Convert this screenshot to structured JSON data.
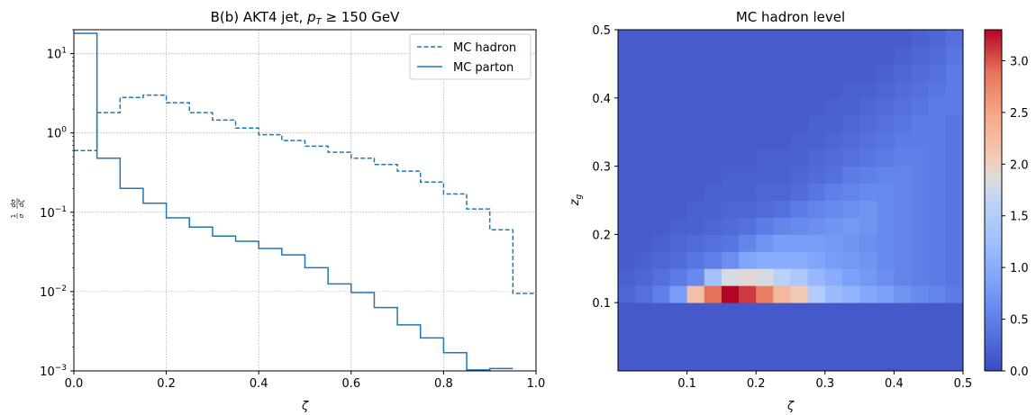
{
  "chart_data": [
    {
      "type": "line",
      "title": "B(b) AKT4 jet, p_T ≥ 150 GeV",
      "title_parts": {
        "lead": "B(b) AKT4 jet, ",
        "p": "p",
        "sub": "T",
        "rest": " ≥ 150 GeV"
      },
      "xlabel": "ζ",
      "ylabel": "1/σ dσ/dζ",
      "ylabel_parts": {
        "num1": "1",
        "den1": "σ",
        "num2": "dσ",
        "den2": "dζ"
      },
      "xlim": [
        0.0,
        1.0
      ],
      "ylim": [
        0.001,
        20
      ],
      "y_scale": "log",
      "grid": true,
      "legend_position": "top-right",
      "x_ticks": [
        "0.0",
        "0.2",
        "0.4",
        "0.6",
        "0.8",
        "1.0"
      ],
      "x_tick_values": [
        0,
        0.2,
        0.4,
        0.6,
        0.8,
        1.0
      ],
      "y_tick_exponents": [
        -3,
        -2,
        -1,
        0,
        1
      ],
      "bin_edges": [
        0,
        0.05,
        0.1,
        0.15,
        0.2,
        0.25,
        0.3,
        0.35,
        0.4,
        0.45,
        0.5,
        0.55,
        0.6,
        0.65,
        0.7,
        0.75,
        0.8,
        0.85,
        0.9,
        0.95,
        1.0
      ],
      "series": [
        {
          "name": "MC hadron",
          "style": "dashed",
          "color": "#1f77b4",
          "values": [
            0.6,
            1.8,
            2.8,
            3.0,
            2.4,
            1.8,
            1.45,
            1.15,
            0.95,
            0.8,
            0.68,
            0.57,
            0.48,
            0.4,
            0.33,
            0.24,
            0.17,
            0.11,
            0.06,
            0.0095
          ]
        },
        {
          "name": "MC parton",
          "style": "solid",
          "color": "#1f77b4",
          "values": [
            18,
            0.48,
            0.2,
            0.13,
            0.085,
            0.065,
            0.05,
            0.043,
            0.035,
            0.029,
            0.02,
            0.0125,
            0.0097,
            0.0063,
            0.0038,
            0.0026,
            0.0017,
            0.00103,
            0.00107,
            null
          ]
        }
      ]
    },
    {
      "type": "heatmap",
      "title": "MC hadron level",
      "xlabel": "ζ",
      "ylabel": "z_g",
      "ylabel_parts": {
        "main": "z",
        "sub": "g"
      },
      "xlim": [
        0,
        0.5
      ],
      "ylim": [
        0,
        0.5
      ],
      "x_ticks": [
        "0.1",
        "0.2",
        "0.3",
        "0.4",
        "0.5"
      ],
      "x_tick_values": [
        0.1,
        0.2,
        0.3,
        0.4,
        0.5
      ],
      "y_ticks": [
        "0.1",
        "0.2",
        "0.3",
        "0.4",
        "0.5"
      ],
      "y_tick_values": [
        0.1,
        0.2,
        0.3,
        0.4,
        0.5
      ],
      "colormap": "coolwarm",
      "colorbar_range": [
        0,
        3.3
      ],
      "colorbar_ticks": [
        "0.0",
        "0.5",
        "1.0",
        "1.5",
        "2.0",
        "2.5",
        "3.0"
      ],
      "colorbar_tick_values": [
        0,
        0.5,
        1.0,
        1.5,
        2.0,
        2.5,
        3.0
      ],
      "x_bin_edges": [
        0,
        0.025,
        0.05,
        0.075,
        0.1,
        0.125,
        0.15,
        0.175,
        0.2,
        0.225,
        0.25,
        0.275,
        0.3,
        0.325,
        0.35,
        0.375,
        0.4,
        0.425,
        0.45,
        0.475,
        0.5
      ],
      "y_bin_edges": [
        0,
        0.1,
        0.125,
        0.15,
        0.175,
        0.2,
        0.225,
        0.25,
        0.275,
        0.3,
        0.325,
        0.35,
        0.375,
        0.4,
        0.425,
        0.45,
        0.475,
        0.5
      ],
      "cell_values": [
        [
          0.12,
          0.12,
          0.12,
          0.12,
          0.12,
          0.12,
          0.12,
          0.12,
          0.12,
          0.12,
          0.12,
          0.12,
          0.12,
          0.12,
          0.12,
          0.12,
          0.12,
          0.12,
          0.12,
          0.12
        ],
        [
          0.25,
          0.35,
          0.5,
          0.8,
          2.2,
          2.9,
          3.3,
          3.1,
          2.8,
          2.3,
          2.1,
          1.5,
          1.2,
          1.1,
          0.95,
          0.85,
          0.7,
          0.6,
          0.55,
          0.45
        ],
        [
          0.2,
          0.25,
          0.35,
          0.45,
          0.6,
          1.3,
          1.8,
          1.9,
          1.8,
          1.6,
          1.4,
          1.15,
          1.0,
          0.85,
          0.75,
          0.65,
          0.55,
          0.5,
          0.45,
          0.4
        ],
        [
          0.15,
          0.2,
          0.25,
          0.3,
          0.4,
          0.5,
          0.65,
          0.9,
          1.0,
          1.0,
          1.0,
          0.9,
          0.8,
          0.75,
          0.7,
          0.6,
          0.55,
          0.5,
          0.45,
          0.4
        ],
        [
          0.15,
          0.15,
          0.2,
          0.25,
          0.3,
          0.35,
          0.4,
          0.55,
          0.7,
          0.8,
          0.8,
          0.8,
          0.75,
          0.7,
          0.65,
          0.6,
          0.55,
          0.5,
          0.45,
          0.4
        ],
        [
          0.15,
          0.15,
          0.15,
          0.2,
          0.2,
          0.25,
          0.3,
          0.35,
          0.45,
          0.55,
          0.6,
          0.65,
          0.7,
          0.75,
          0.7,
          0.6,
          0.55,
          0.5,
          0.45,
          0.4
        ],
        [
          0.15,
          0.15,
          0.15,
          0.15,
          0.2,
          0.2,
          0.25,
          0.25,
          0.3,
          0.35,
          0.45,
          0.55,
          0.6,
          0.65,
          0.7,
          0.6,
          0.55,
          0.5,
          0.45,
          0.4
        ],
        [
          0.15,
          0.15,
          0.15,
          0.15,
          0.15,
          0.2,
          0.2,
          0.2,
          0.25,
          0.25,
          0.3,
          0.4,
          0.5,
          0.55,
          0.6,
          0.6,
          0.55,
          0.5,
          0.45,
          0.4
        ],
        [
          0.15,
          0.15,
          0.15,
          0.15,
          0.15,
          0.15,
          0.2,
          0.2,
          0.2,
          0.2,
          0.25,
          0.3,
          0.35,
          0.45,
          0.5,
          0.55,
          0.55,
          0.5,
          0.45,
          0.4
        ],
        [
          0.15,
          0.15,
          0.15,
          0.15,
          0.15,
          0.15,
          0.15,
          0.15,
          0.2,
          0.2,
          0.2,
          0.25,
          0.3,
          0.35,
          0.4,
          0.45,
          0.5,
          0.5,
          0.45,
          0.4
        ],
        [
          0.15,
          0.15,
          0.15,
          0.15,
          0.15,
          0.15,
          0.15,
          0.15,
          0.15,
          0.15,
          0.2,
          0.2,
          0.25,
          0.3,
          0.35,
          0.4,
          0.45,
          0.45,
          0.45,
          0.4
        ],
        [
          0.15,
          0.15,
          0.15,
          0.15,
          0.15,
          0.15,
          0.15,
          0.15,
          0.15,
          0.15,
          0.15,
          0.2,
          0.2,
          0.25,
          0.3,
          0.35,
          0.4,
          0.45,
          0.45,
          0.4
        ],
        [
          0.15,
          0.15,
          0.15,
          0.15,
          0.15,
          0.15,
          0.15,
          0.15,
          0.15,
          0.15,
          0.15,
          0.15,
          0.2,
          0.2,
          0.25,
          0.3,
          0.35,
          0.4,
          0.45,
          0.45
        ],
        [
          0.15,
          0.15,
          0.15,
          0.15,
          0.15,
          0.15,
          0.15,
          0.15,
          0.15,
          0.15,
          0.15,
          0.15,
          0.15,
          0.2,
          0.2,
          0.25,
          0.3,
          0.35,
          0.4,
          0.45
        ],
        [
          0.15,
          0.15,
          0.15,
          0.15,
          0.15,
          0.15,
          0.15,
          0.15,
          0.15,
          0.15,
          0.15,
          0.15,
          0.15,
          0.15,
          0.15,
          0.2,
          0.25,
          0.3,
          0.35,
          0.45
        ],
        [
          0.15,
          0.15,
          0.15,
          0.15,
          0.15,
          0.15,
          0.15,
          0.15,
          0.15,
          0.15,
          0.15,
          0.15,
          0.15,
          0.15,
          0.15,
          0.15,
          0.2,
          0.25,
          0.3,
          0.4
        ],
        [
          0.15,
          0.15,
          0.15,
          0.15,
          0.15,
          0.15,
          0.15,
          0.15,
          0.15,
          0.15,
          0.15,
          0.15,
          0.15,
          0.15,
          0.15,
          0.15,
          0.15,
          0.2,
          0.25,
          0.35
        ]
      ]
    }
  ]
}
